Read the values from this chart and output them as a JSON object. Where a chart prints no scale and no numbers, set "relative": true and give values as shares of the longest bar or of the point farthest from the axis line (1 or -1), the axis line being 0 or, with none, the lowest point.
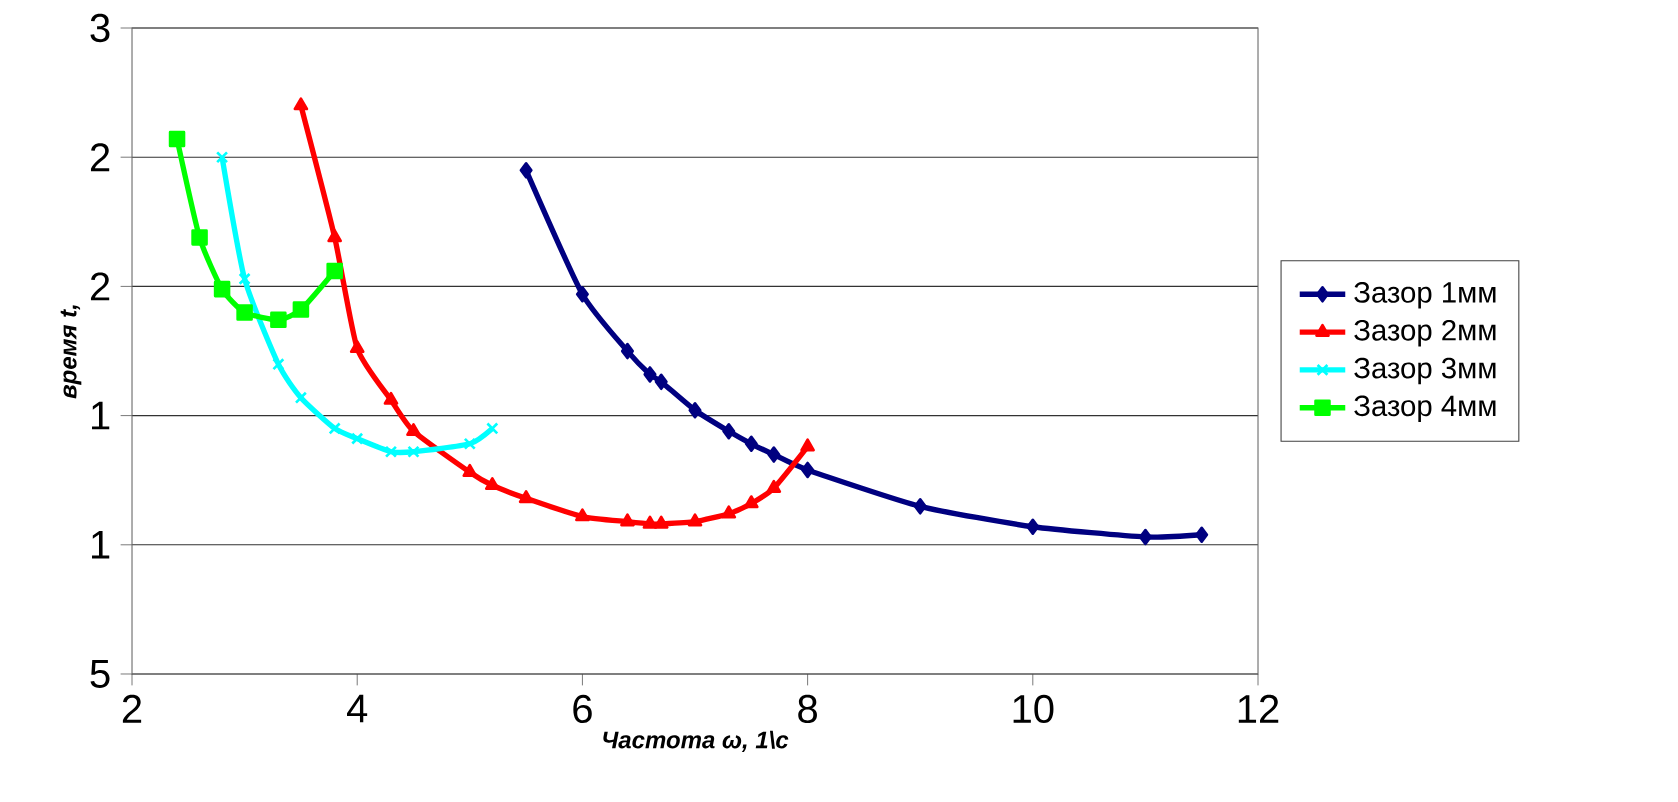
{
  "chart_data": {
    "type": "line",
    "xlabel": "Частота ω, 1\\с",
    "ylabel": "время t,",
    "xlim": [
      2,
      12
    ],
    "xticks": [
      2,
      4,
      6,
      8,
      10,
      12
    ],
    "relative": true,
    "annotations": [
      "5",
      "1",
      "1",
      "2",
      "2",
      "3"
    ],
    "grid": "y",
    "legend": "right",
    "series": [
      {
        "name": "Зазор 1мм",
        "color": "#000080",
        "marker": "diamond",
        "x": [
          5.5,
          6.0,
          6.4,
          6.6,
          6.7,
          7.0,
          7.3,
          7.5,
          7.7,
          8.0,
          9.0,
          10.0,
          11.0,
          11.5
        ],
        "values": [
          0.886,
          0.668,
          0.568,
          0.527,
          0.514,
          0.464,
          0.427,
          0.405,
          0.386,
          0.359,
          0.295,
          0.259,
          0.241,
          0.245
        ]
      },
      {
        "name": "Зазор 2мм",
        "color": "#ff0000",
        "marker": "triangle",
        "x": [
          3.5,
          3.8,
          4.0,
          4.3,
          4.5,
          5.0,
          5.2,
          5.5,
          6.0,
          6.4,
          6.6,
          6.7,
          7.0,
          7.3,
          7.5,
          7.7,
          8.0
        ],
        "values": [
          1,
          0.768,
          0.573,
          0.482,
          0.427,
          0.355,
          0.332,
          0.309,
          0.277,
          0.268,
          0.264,
          0.264,
          0.268,
          0.282,
          0.3,
          0.327,
          0.4
        ]
      },
      {
        "name": "Зазор 3мм",
        "color": "#00ffff",
        "marker": "cross",
        "x": [
          2.8,
          3.0,
          3.3,
          3.5,
          3.8,
          4.0,
          4.3,
          4.5,
          5.0,
          5.2
        ],
        "values": [
          0.909,
          0.695,
          0.545,
          0.486,
          0.432,
          0.414,
          0.391,
          0.391,
          0.405,
          0.432
        ]
      },
      {
        "name": "Зазор 4мм",
        "color": "#00ff00",
        "marker": "square",
        "x": [
          2.4,
          2.6,
          2.8,
          3.0,
          3.3,
          3.5,
          3.8
        ],
        "values": [
          0.941,
          0.768,
          0.677,
          0.636,
          0.623,
          0.641,
          0.709
        ]
      }
    ]
  }
}
